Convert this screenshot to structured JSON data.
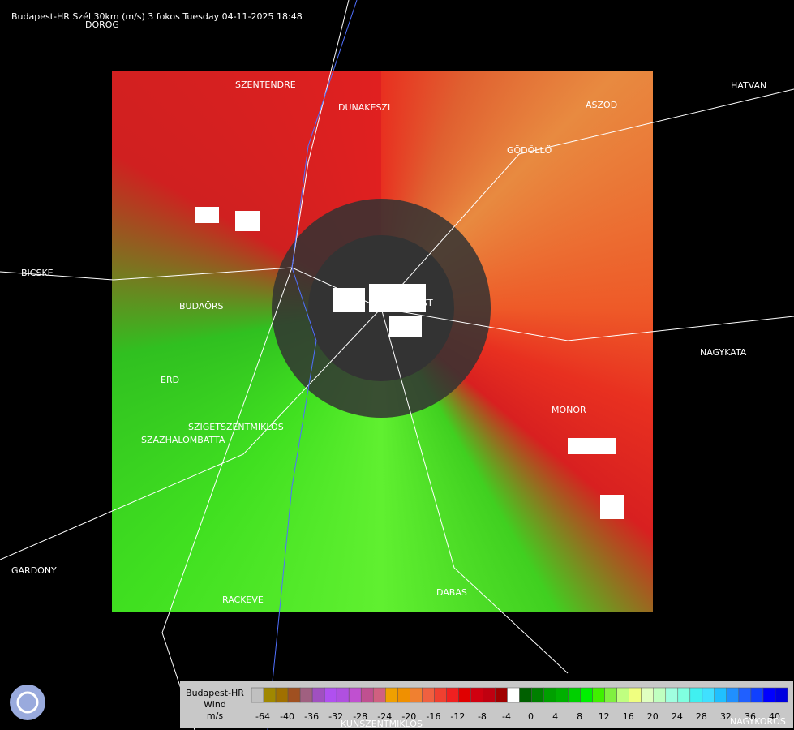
{
  "header": {
    "title": "Budapest-HR Szél 30km (m/s) 3 fokos Tuesday 04-11-2025 18:48"
  },
  "map": {
    "places": [
      "DOROG",
      "SZENTENDRE",
      "DUNAKESZI",
      "HATVAN",
      "ASZOD",
      "GÖDÖLLŐ",
      "BICSKE",
      "BUDAÖRS",
      "BUDAPEST",
      "NAGYKATA",
      "ERD",
      "MONOR",
      "SZIGETSZENTMIKLOS",
      "SZAZHALOMBATTA",
      "GARDONY",
      "RACKEVE",
      "DABAS",
      "KUNSZENTMIKLOS",
      "NAGYKOROS"
    ]
  },
  "legend": {
    "title": [
      "Budapest-HR",
      "Wind",
      "m/s"
    ],
    "ticks": [
      -64,
      -40,
      -36,
      -32,
      -28,
      -24,
      -20,
      -16,
      -12,
      -8,
      -4,
      0,
      4,
      8,
      12,
      16,
      20,
      24,
      28,
      32,
      36,
      40
    ],
    "colors": [
      "#c0c0c0",
      "#a08800",
      "#a07000",
      "#a05020",
      "#a06080",
      "#a050c0",
      "#b050f0",
      "#b050e0",
      "#c050d0",
      "#c05090",
      "#d06080",
      "#f0a000",
      "#f09000",
      "#f08030",
      "#f06040",
      "#f04030",
      "#f02020",
      "#e00000",
      "#d00010",
      "#c00010",
      "#a00000",
      "#ffffff",
      "#006000",
      "#008000",
      "#00a000",
      "#00b000",
      "#00d000",
      "#00f000",
      "#40f000",
      "#80f040",
      "#c0ff80",
      "#f0ff80",
      "#e0ffc0",
      "#c0ffc0",
      "#a0ffe0",
      "#80ffe0",
      "#40f0f0",
      "#40e0ff",
      "#20c0ff",
      "#2090ff",
      "#2060ff",
      "#1040ff",
      "#0000ff",
      "#0000e0"
    ]
  }
}
